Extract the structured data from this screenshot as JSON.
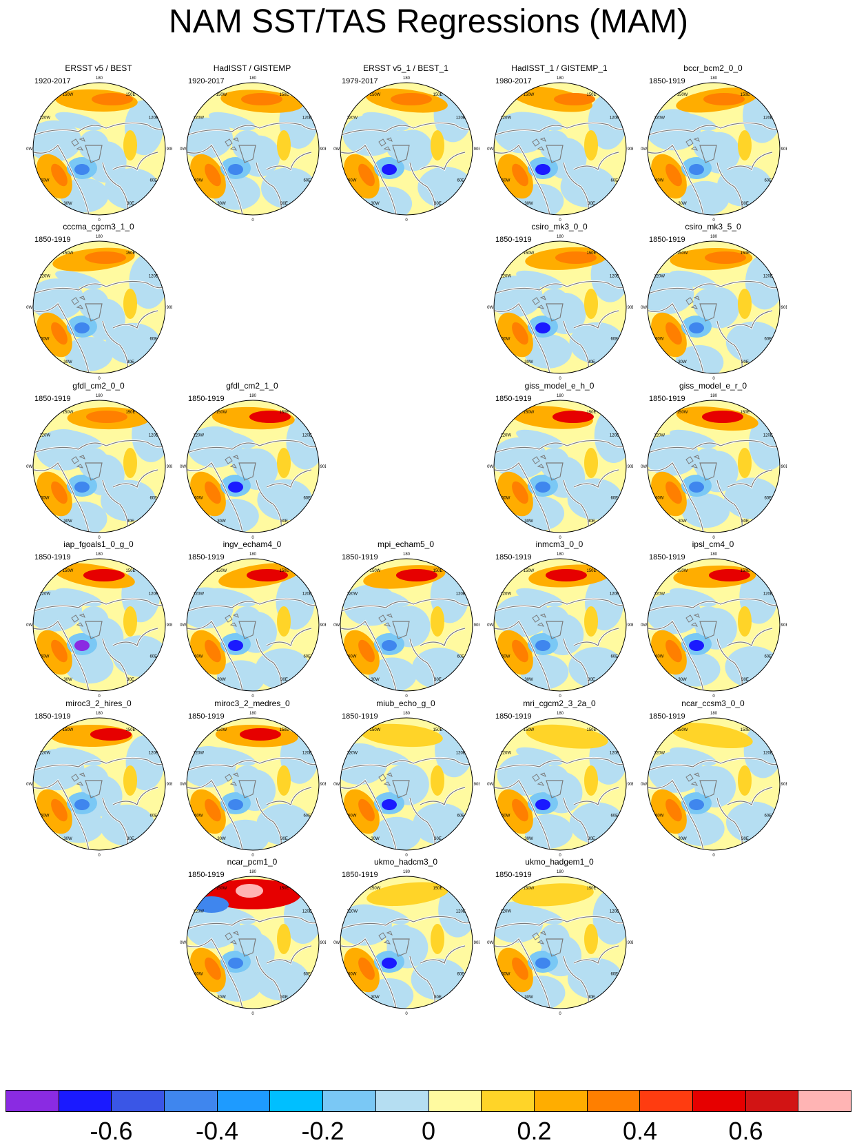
{
  "title": "NAM SST/TAS Regressions (MAM)",
  "lon_labels": [
    "180",
    "150E",
    "120E",
    "90E",
    "60E",
    "30E",
    "0",
    "30W",
    "60W",
    "90W",
    "120W",
    "150W"
  ],
  "panels": [
    {
      "row": 0,
      "col": 0,
      "title": "ERSST v5 / BEST",
      "period": "1920-2017"
    },
    {
      "row": 0,
      "col": 1,
      "title": "HadISST / GISTEMP",
      "period": "1920-2017"
    },
    {
      "row": 0,
      "col": 2,
      "title": "ERSST v5_1 / BEST_1",
      "period": "1979-2017"
    },
    {
      "row": 0,
      "col": 3,
      "title": "HadISST_1 / GISTEMP_1",
      "period": "1980-2017"
    },
    {
      "row": 0,
      "col": 4,
      "title": "bccr_bcm2_0_0",
      "period": "1850-1919"
    },
    {
      "row": 1,
      "col": 0,
      "title": "cccma_cgcm3_1_0",
      "period": "1850-1919"
    },
    {
      "row": 1,
      "col": 3,
      "title": "csiro_mk3_0_0",
      "period": "1850-1919"
    },
    {
      "row": 1,
      "col": 4,
      "title": "csiro_mk3_5_0",
      "period": "1850-1919"
    },
    {
      "row": 2,
      "col": 0,
      "title": "gfdl_cm2_0_0",
      "period": "1850-1919"
    },
    {
      "row": 2,
      "col": 1,
      "title": "gfdl_cm2_1_0",
      "period": "1850-1919"
    },
    {
      "row": 2,
      "col": 3,
      "title": "giss_model_e_h_0",
      "period": "1850-1919"
    },
    {
      "row": 2,
      "col": 4,
      "title": "giss_model_e_r_0",
      "period": "1850-1919"
    },
    {
      "row": 3,
      "col": 0,
      "title": "iap_fgoals1_0_g_0",
      "period": "1850-1919"
    },
    {
      "row": 3,
      "col": 1,
      "title": "ingv_echam4_0",
      "period": "1850-1919"
    },
    {
      "row": 3,
      "col": 2,
      "title": "mpi_echam5_0",
      "period": "1850-1919"
    },
    {
      "row": 3,
      "col": 3,
      "title": "inmcm3_0_0",
      "period": "1850-1919"
    },
    {
      "row": 3,
      "col": 4,
      "title": "ipsl_cm4_0",
      "period": "1850-1919"
    },
    {
      "row": 4,
      "col": 0,
      "title": "miroc3_2_hires_0",
      "period": "1850-1919"
    },
    {
      "row": 4,
      "col": 1,
      "title": "miroc3_2_medres_0",
      "period": "1850-1919"
    },
    {
      "row": 4,
      "col": 2,
      "title": "miub_echo_g_0",
      "period": "1850-1919"
    },
    {
      "row": 4,
      "col": 3,
      "title": "mri_cgcm2_3_2a_0",
      "period": "1850-1919"
    },
    {
      "row": 4,
      "col": 4,
      "title": "ncar_ccsm3_0_0",
      "period": "1850-1919"
    },
    {
      "row": 5,
      "col": 1,
      "title": "ncar_pcm1_0",
      "period": "1850-1919"
    },
    {
      "row": 5,
      "col": 2,
      "title": "ukmo_hadcm3_0",
      "period": "1850-1919"
    },
    {
      "row": 5,
      "col": 3,
      "title": "ukmo_hadgem1_0",
      "period": "1850-1919"
    }
  ],
  "colorbar": {
    "colors": [
      "#8a2be2",
      "#1a1aff",
      "#3a56e6",
      "#3f86ee",
      "#1e9bff",
      "#00bfff",
      "#7ac8f5",
      "#b5def2",
      "#fffaa0",
      "#ffd428",
      "#ffad00",
      "#ff7f00",
      "#ff3c10",
      "#e60000",
      "#d21414",
      "#ffb4b4"
    ],
    "tick_values": [
      -0.6,
      -0.4,
      -0.2,
      0,
      0.2,
      0.4,
      0.6
    ],
    "labels": [
      "-0.6",
      "-0.4",
      "-0.2",
      "0",
      "0.2",
      "0.4",
      "0.6"
    ]
  }
}
